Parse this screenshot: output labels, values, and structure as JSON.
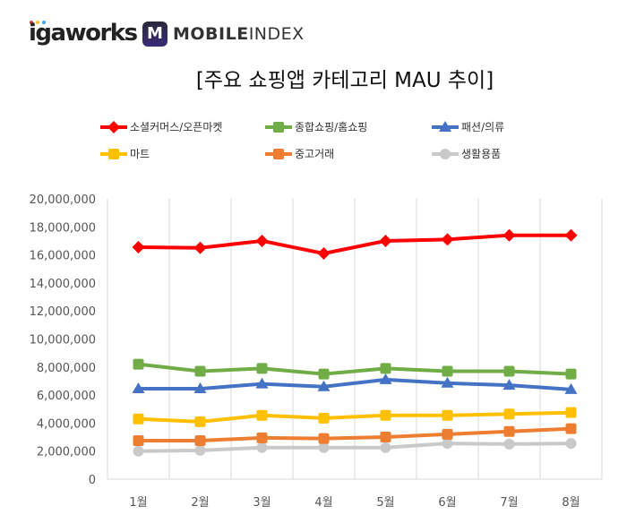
{
  "branding": {
    "logo_left": "igaworks",
    "logo_right_bold": "MOBILE",
    "logo_right_light": "INDEX",
    "logo_mark": "M"
  },
  "chart_data": {
    "type": "line",
    "title": "[주요 쇼핑앱 카테고리 MAU 추이]",
    "categories": [
      "1월",
      "2월",
      "3월",
      "4월",
      "5월",
      "6월",
      "7월",
      "8월"
    ],
    "ylim": [
      0,
      20000000
    ],
    "yticks": [
      "0",
      "2,000,000",
      "4,000,000",
      "6,000,000",
      "8,000,000",
      "10,000,000",
      "12,000,000",
      "14,000,000",
      "16,000,000",
      "18,000,000",
      "20,000,000"
    ],
    "grid": "vertical",
    "legend_placement": "top",
    "series": [
      {
        "name": "소셜커머스/오픈마켓",
        "color": "#ff0000",
        "marker": "diamond",
        "values": [
          16550000,
          16500000,
          17000000,
          16100000,
          17000000,
          17100000,
          17400000,
          17400000
        ]
      },
      {
        "name": "종합쇼핑/홈쇼핑",
        "color": "#70ad47",
        "marker": "square",
        "values": [
          8200000,
          7700000,
          7900000,
          7500000,
          7900000,
          7700000,
          7700000,
          7500000
        ]
      },
      {
        "name": "패션/의류",
        "color": "#4472c4",
        "marker": "triangle",
        "values": [
          6450000,
          6450000,
          6800000,
          6600000,
          7100000,
          6850000,
          6700000,
          6400000
        ]
      },
      {
        "name": "마트",
        "color": "#ffc000",
        "marker": "square",
        "values": [
          4300000,
          4100000,
          4550000,
          4350000,
          4550000,
          4550000,
          4650000,
          4750000
        ]
      },
      {
        "name": "중고거래",
        "color": "#ed7d31",
        "marker": "square",
        "values": [
          2750000,
          2750000,
          2950000,
          2900000,
          3000000,
          3200000,
          3400000,
          3600000
        ]
      },
      {
        "name": "생활용품",
        "color": "#c9c9c9",
        "marker": "circle",
        "values": [
          2000000,
          2050000,
          2250000,
          2250000,
          2250000,
          2550000,
          2500000,
          2550000
        ]
      }
    ]
  }
}
